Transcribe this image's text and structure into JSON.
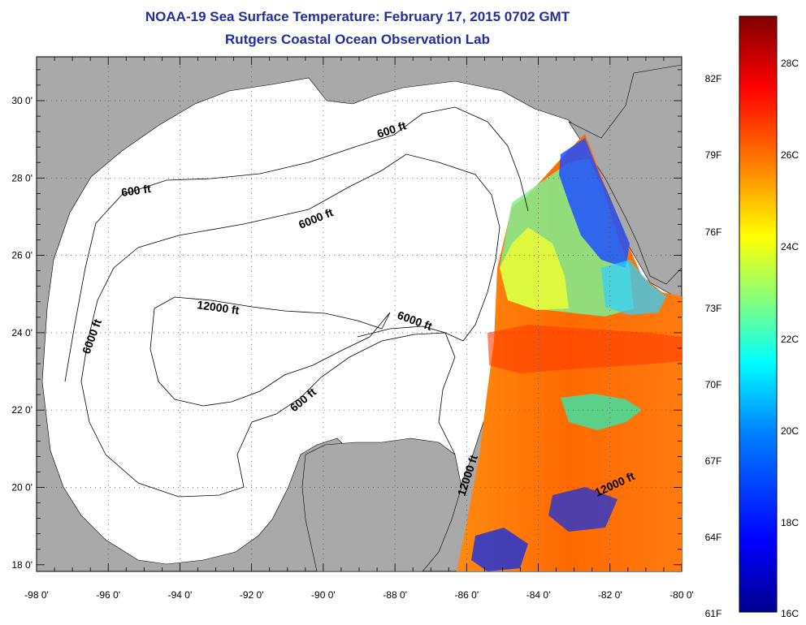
{
  "header": {
    "title": "NOAA-19 Sea Surface Temperature:  February 17, 2015 0702 GMT",
    "subtitle": "Rutgers Coastal Ocean Observation Lab"
  },
  "map": {
    "longitude_labels": [
      "-98 0'",
      "-96 0'",
      "-94 0'",
      "-92 0'",
      "-90 0'",
      "-88 0'",
      "-86 0'",
      "-84 0'",
      "-82 0'",
      "-80 0'"
    ],
    "latitude_labels": [
      "30 0'",
      "28 0'",
      "26 0'",
      "24 0'",
      "22 0'",
      "20 0'",
      "18 0'"
    ],
    "contour_labels": [
      "600 ft",
      "600 ft",
      "6000 ft",
      "12000 ft",
      "6000 ft",
      "6000 ft",
      "600 ft",
      "12000 ft",
      "12000 ft"
    ],
    "colors": {
      "land": "#a9a9a9",
      "no_data": "#ffffff",
      "gridline": "#555555"
    }
  },
  "colorbar": {
    "fahrenheit_labels": [
      "82F",
      "79F",
      "76F",
      "73F",
      "70F",
      "67F",
      "64F",
      "61F"
    ],
    "celsius_labels": [
      "28C",
      "26C",
      "24C",
      "22C",
      "20C",
      "18C",
      "16C"
    ],
    "colormap": [
      "#00008f",
      "#0000ff",
      "#0080ff",
      "#00ffff",
      "#80ff80",
      "#ffff00",
      "#ff8000",
      "#ff0000",
      "#800000"
    ]
  }
}
